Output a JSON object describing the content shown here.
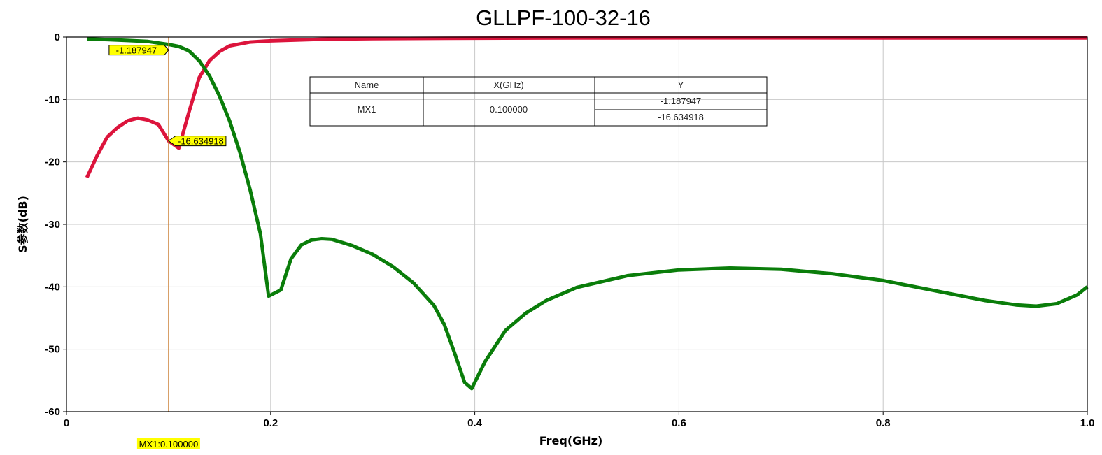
{
  "chart_data": {
    "type": "line",
    "title": "GLLPF-100-32-16",
    "xlabel": "Freq(GHz)",
    "ylabel": "S参数(dB)",
    "xlim": [
      0,
      1.0
    ],
    "ylim": [
      -60,
      0
    ],
    "x_ticks": [
      0,
      0.2,
      0.4,
      0.6,
      0.8,
      1.0
    ],
    "x_tick_labels": [
      "0",
      "0.2",
      "0.4",
      "0.6",
      "0.8",
      "1.0"
    ],
    "y_ticks": [
      0,
      -10,
      -20,
      -30,
      -40,
      -50,
      -60
    ],
    "y_tick_labels": [
      "0",
      "-10",
      "-20",
      "-30",
      "-40",
      "-50",
      "-60"
    ],
    "grid": true,
    "series": [
      {
        "color": "#dc143c",
        "points": [
          [
            0.02,
            -22.5
          ],
          [
            0.03,
            -19
          ],
          [
            0.04,
            -16
          ],
          [
            0.05,
            -14.5
          ],
          [
            0.06,
            -13.4
          ],
          [
            0.07,
            -13
          ],
          [
            0.08,
            -13.3
          ],
          [
            0.09,
            -14
          ],
          [
            0.1,
            -16.634918
          ],
          [
            0.11,
            -17.8
          ],
          [
            0.12,
            -12
          ],
          [
            0.13,
            -6.5
          ],
          [
            0.14,
            -3.8
          ],
          [
            0.15,
            -2.3
          ],
          [
            0.16,
            -1.4
          ],
          [
            0.18,
            -0.8
          ],
          [
            0.2,
            -0.6
          ],
          [
            0.25,
            -0.35
          ],
          [
            0.3,
            -0.25
          ],
          [
            0.4,
            -0.18
          ],
          [
            0.5,
            -0.15
          ],
          [
            0.6,
            -0.12
          ],
          [
            0.7,
            -0.12
          ],
          [
            0.8,
            -0.15
          ],
          [
            0.9,
            -0.15
          ],
          [
            1.0,
            -0.15
          ]
        ]
      },
      {
        "color": "#0a7d0a",
        "points": [
          [
            0.02,
            -0.3
          ],
          [
            0.04,
            -0.4
          ],
          [
            0.06,
            -0.55
          ],
          [
            0.08,
            -0.7
          ],
          [
            0.1,
            -1.187947
          ],
          [
            0.11,
            -1.5
          ],
          [
            0.12,
            -2.2
          ],
          [
            0.13,
            -3.8
          ],
          [
            0.14,
            -6.2
          ],
          [
            0.15,
            -9.5
          ],
          [
            0.16,
            -13.5
          ],
          [
            0.17,
            -18.5
          ],
          [
            0.18,
            -24.5
          ],
          [
            0.19,
            -31.5
          ],
          [
            0.198,
            -41.5
          ],
          [
            0.21,
            -40.5
          ],
          [
            0.22,
            -35.5
          ],
          [
            0.23,
            -33.3
          ],
          [
            0.24,
            -32.5
          ],
          [
            0.25,
            -32.3
          ],
          [
            0.26,
            -32.4
          ],
          [
            0.28,
            -33.4
          ],
          [
            0.3,
            -34.8
          ],
          [
            0.32,
            -36.8
          ],
          [
            0.34,
            -39.4
          ],
          [
            0.36,
            -43
          ],
          [
            0.37,
            -46
          ],
          [
            0.38,
            -50.5
          ],
          [
            0.39,
            -55.3
          ],
          [
            0.397,
            -56.3
          ],
          [
            0.41,
            -52
          ],
          [
            0.43,
            -47
          ],
          [
            0.45,
            -44.2
          ],
          [
            0.47,
            -42.2
          ],
          [
            0.5,
            -40.1
          ],
          [
            0.55,
            -38.2
          ],
          [
            0.6,
            -37.3
          ],
          [
            0.65,
            -37
          ],
          [
            0.7,
            -37.2
          ],
          [
            0.75,
            -37.9
          ],
          [
            0.8,
            -39
          ],
          [
            0.85,
            -40.6
          ],
          [
            0.9,
            -42.2
          ],
          [
            0.93,
            -42.9
          ],
          [
            0.95,
            -43.1
          ],
          [
            0.97,
            -42.7
          ],
          [
            0.99,
            -41.3
          ],
          [
            1.0,
            -40
          ]
        ]
      }
    ],
    "marker": {
      "name": "MX1",
      "x": 0.1,
      "x_label": "MX1:0.100000",
      "values": [
        {
          "y": -1.187947,
          "label": "-1.187947"
        },
        {
          "y": -16.634918,
          "label": "-16.634918"
        }
      ],
      "color": "#c87828",
      "label_bg": "#ffff00"
    },
    "table": {
      "headers": [
        "Name",
        "X(GHz)",
        "Y"
      ],
      "row_name": "MX1",
      "row_x": "0.100000",
      "row_y": [
        "-1.187947",
        "-16.634918"
      ]
    }
  }
}
